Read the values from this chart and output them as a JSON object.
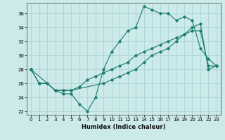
{
  "xlabel": "Humidex (Indice chaleur)",
  "bg_color": "#cceaea",
  "grid_color": "#aad4d4",
  "line_color": "#1a7a6e",
  "xlim": [
    -0.5,
    23.5
  ],
  "ylim": [
    21.5,
    37.5
  ],
  "xticks": [
    0,
    1,
    2,
    3,
    4,
    5,
    6,
    7,
    8,
    9,
    10,
    11,
    12,
    13,
    14,
    15,
    16,
    17,
    18,
    19,
    20,
    21,
    22,
    23
  ],
  "yticks": [
    22,
    24,
    26,
    28,
    30,
    32,
    34,
    36
  ],
  "line1_x": [
    0,
    1,
    2,
    3,
    4,
    5,
    6,
    7,
    8,
    9,
    10,
    11,
    12,
    13,
    14,
    15,
    16,
    17,
    18,
    19,
    20,
    21,
    22,
    23
  ],
  "line1_y": [
    28,
    26,
    26,
    25,
    24.5,
    24.5,
    23,
    22,
    24,
    28,
    30.5,
    32,
    33.5,
    34,
    37,
    36.5,
    36,
    36,
    35,
    35.5,
    35,
    31,
    29.5,
    28.5
  ],
  "line2_x": [
    0,
    1,
    2,
    3,
    4,
    5,
    6,
    7,
    8,
    9,
    10,
    11,
    12,
    13,
    14,
    15,
    16,
    17,
    18,
    19,
    20,
    21,
    22,
    23
  ],
  "line2_y": [
    28,
    26,
    26,
    25,
    25,
    25,
    25.5,
    26.5,
    27,
    27.5,
    28,
    28.5,
    29,
    30,
    30.5,
    31,
    31.5,
    32,
    32.5,
    33,
    33.5,
    33.5,
    28.5,
    28.5
  ],
  "line3_x": [
    0,
    3,
    4,
    5,
    9,
    10,
    11,
    12,
    13,
    14,
    15,
    16,
    17,
    18,
    19,
    20,
    21,
    22,
    23
  ],
  "line3_y": [
    28,
    25,
    25,
    25,
    26,
    26.5,
    27,
    27.5,
    28,
    29,
    30,
    30.5,
    31,
    32,
    33,
    34,
    34.5,
    28,
    28.5
  ]
}
